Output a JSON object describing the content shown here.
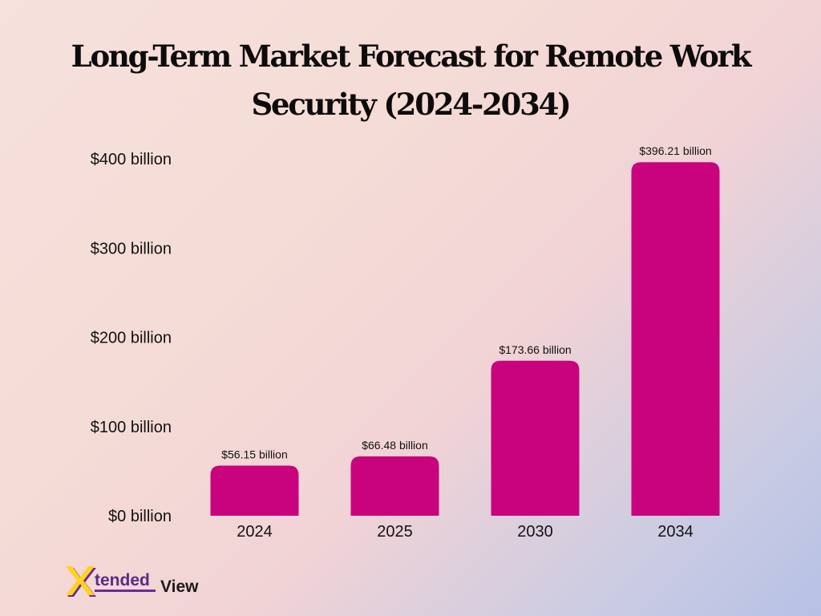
{
  "chart_data": {
    "type": "bar",
    "title": "Long-Term Market Forecast for Remote Work Security (2024-2034)",
    "categories": [
      "2024",
      "2025",
      "2030",
      "2034"
    ],
    "values": [
      56.15,
      66.48,
      173.66,
      396.21
    ],
    "data_labels": [
      "$56.15 billion",
      "$66.48 billion",
      "$173.66 billion",
      "$396.21 billion"
    ],
    "y_ticks": [
      0,
      100,
      200,
      300,
      400
    ],
    "y_tick_labels": [
      "$0 billion",
      "$100 billion",
      "$200 billion",
      "$300 billion",
      "$400 billion"
    ],
    "ylim": [
      0,
      400
    ],
    "grid": false,
    "legend": "none",
    "bar_color": "#c9027d"
  },
  "logo": {
    "text_a": "tended",
    "text_b": "View",
    "mark": "X",
    "colors": {
      "x_mark": "#ffd21f",
      "x_shadow": "#6a2a9a",
      "underline": "#6a2a9a"
    }
  }
}
